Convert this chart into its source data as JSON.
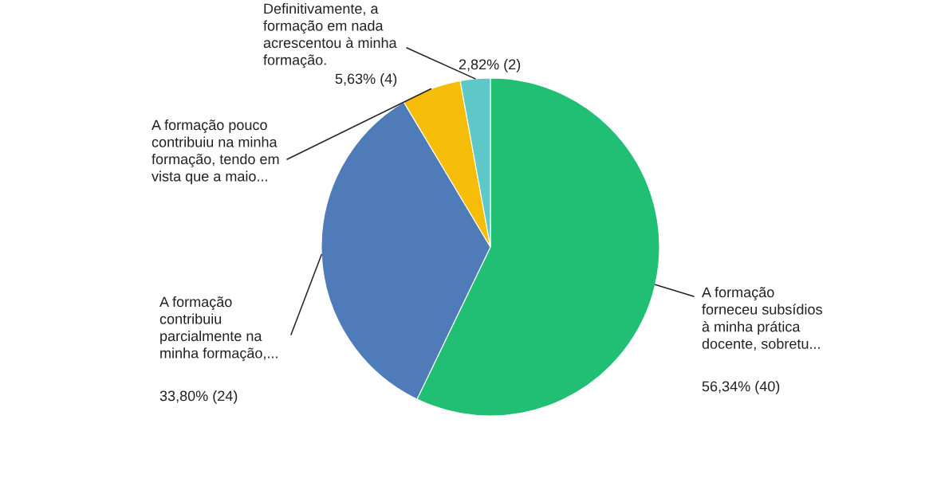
{
  "chart_data": {
    "type": "pie",
    "categories": [
      "A formação\nforneceu subsídios\nà minha prática\ndocente, sobretu...",
      "A formação\ncontribuiu\nparcialmente na\nminha formação,...",
      "A formação pouco\ncontribuiu na minha\nformação, tendo em\nvista que a maio...",
      "Definitivamente, a\nformação em nada\nacrescentou à minha\nformação."
    ],
    "values": [
      56.34,
      33.8,
      5.63,
      2.82
    ],
    "value_labels": [
      "56,34% (40)",
      "33,80% (24)",
      "5,63% (4)",
      "2,82% (2)"
    ],
    "colors": [
      "#21bf73",
      "#4f7cb8",
      "#f5bd07",
      "#5ec8c8"
    ]
  }
}
